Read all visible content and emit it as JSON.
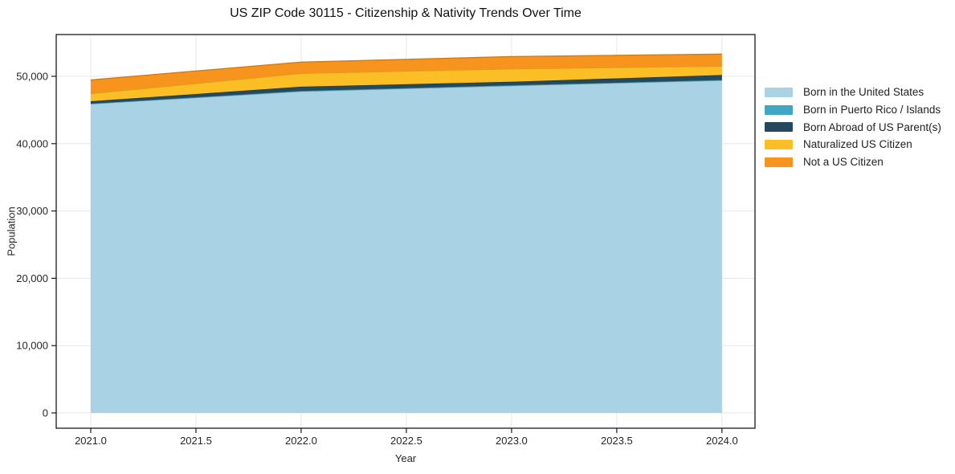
{
  "title": "US ZIP Code 30115 - Citizenship & Nativity Trends Over Time",
  "chart_data": {
    "type": "area",
    "stacked": true,
    "title": "US ZIP Code 30115 - Citizenship & Nativity Trends Over Time",
    "xlabel": "Year",
    "ylabel": "Population",
    "x": [
      2021,
      2022,
      2023,
      2024
    ],
    "series": [
      {
        "name": "Born in the United States",
        "color": "#A9D3E5",
        "values": [
          45900,
          47750,
          48600,
          49400
        ]
      },
      {
        "name": "Born in Puerto Rico / Islands",
        "color": "#41A6C4",
        "values": [
          50,
          80,
          70,
          60
        ]
      },
      {
        "name": "Born Abroad of US Parent(s)",
        "color": "#24495A",
        "values": [
          350,
          630,
          530,
          740
        ]
      },
      {
        "name": "Naturalized US Citizen",
        "color": "#FBBF25",
        "values": [
          1130,
          1980,
          1910,
          1310
        ]
      },
      {
        "name": "Not a US Citizen",
        "color": "#F7941D",
        "values": [
          2030,
          1670,
          1820,
          1790
        ]
      }
    ],
    "totals": [
      49460,
      52110,
      52930,
      53300
    ],
    "x_ticks": [
      2021.0,
      2021.5,
      2022.0,
      2022.5,
      2023.0,
      2023.5,
      2024.0
    ],
    "x_tick_labels": [
      "2021.0",
      "2021.5",
      "2022.0",
      "2022.5",
      "2023.0",
      "2023.5",
      "2024.0"
    ],
    "y_ticks": [
      0,
      10000,
      20000,
      30000,
      40000,
      50000
    ],
    "y_tick_labels": [
      "0",
      "10,000",
      "20,000",
      "30,000",
      "40,000",
      "50,000"
    ],
    "xlim": [
      2020.836,
      2024.157
    ],
    "ylim": [
      -2267,
      56205
    ],
    "grid": true,
    "legend_position": "right",
    "grid_color": "#e7e7e7",
    "axis_color": "#1a1a1a",
    "tick_label_color": "#262626"
  }
}
